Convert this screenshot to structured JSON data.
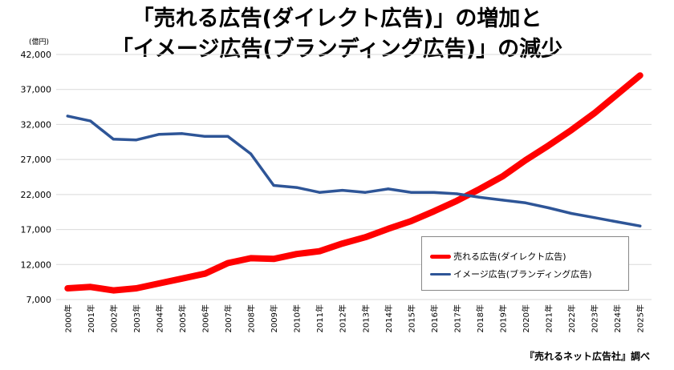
{
  "title_line1": "「売れる広告(ダイレクト広告)」の増加と",
  "title_line2": "「イメージ広告(ブランディング広告)」の減少",
  "unit_label": "(億円)",
  "source": "『売れるネット広告社』調べ",
  "chart_data": {
    "type": "line",
    "ylim": [
      7000,
      42000
    ],
    "yticks": [
      7000,
      12000,
      17000,
      22000,
      27000,
      32000,
      37000,
      42000
    ],
    "ytick_labels": [
      "7,000",
      "12,000",
      "17,000",
      "22,000",
      "27,000",
      "32,000",
      "37,000",
      "42,000"
    ],
    "categories": [
      "2000年",
      "2001年",
      "2002年",
      "2003年",
      "2004年",
      "2005年",
      "2006年",
      "2007年",
      "2008年",
      "2009年",
      "2010年",
      "2011年",
      "2012年",
      "2013年",
      "2014年",
      "2015年",
      "2016年",
      "2017年",
      "2018年",
      "2019年",
      "2020年",
      "2021年",
      "2022年",
      "2023年",
      "2024年",
      "2025年"
    ],
    "grid": true,
    "legend_position": "bottom-right",
    "series": [
      {
        "name": "売れる広告(ダイレクト広告)",
        "color": "#ff0000",
        "values": [
          8600,
          8800,
          8300,
          8600,
          9300,
          10000,
          10700,
          12200,
          12900,
          12800,
          13500,
          13900,
          15000,
          15900,
          17100,
          18200,
          19600,
          21100,
          22800,
          24600,
          26900,
          29000,
          31200,
          33600,
          36300,
          39000
        ]
      },
      {
        "name": "イメージ広告(ブランディング広告)",
        "color": "#2e5597",
        "values": [
          33200,
          32500,
          29900,
          29800,
          30600,
          30700,
          30300,
          30300,
          27800,
          23300,
          23000,
          22300,
          22600,
          22300,
          22800,
          22300,
          22300,
          22100,
          21600,
          21200,
          20800,
          20100,
          19300,
          18700,
          18100,
          17500
        ]
      }
    ]
  }
}
